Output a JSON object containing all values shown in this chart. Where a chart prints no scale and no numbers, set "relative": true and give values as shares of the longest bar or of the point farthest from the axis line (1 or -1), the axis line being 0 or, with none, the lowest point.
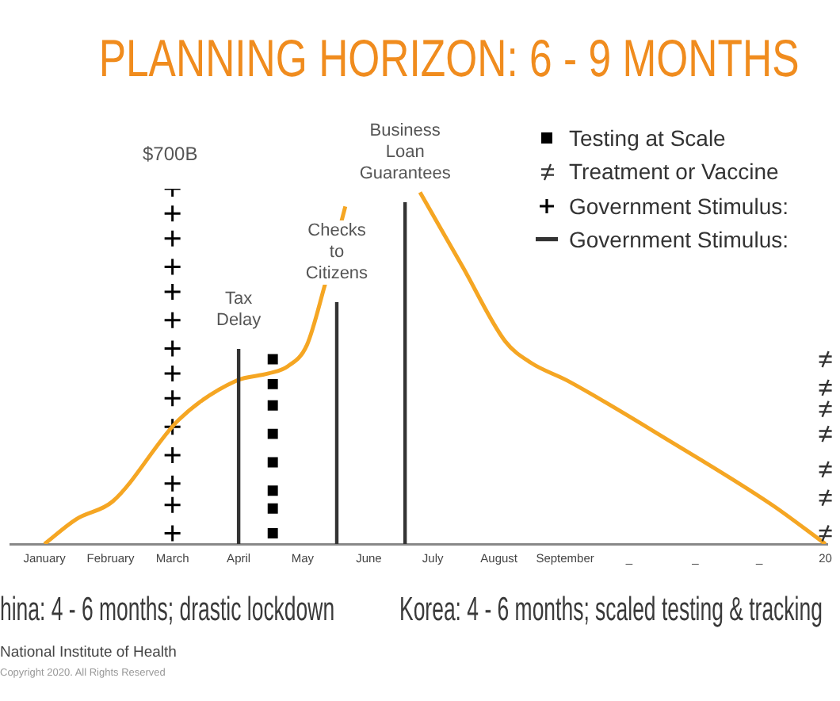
{
  "chart_data": {
    "type": "line",
    "title": "PLANNING HORIZON: 6 - 9 MONTHS",
    "relative": true,
    "legend": "top right",
    "xlim": [
      "2019-12-16",
      "2021-01-02"
    ],
    "xticks": [
      {
        "value": "2020-01-01",
        "label": "January"
      },
      {
        "value": "2020-02-01",
        "label": "February"
      },
      {
        "value": "2020-03-01",
        "label": "March"
      },
      {
        "value": "2020-04-01",
        "label": "April"
      },
      {
        "value": "2020-05-01",
        "label": "May"
      },
      {
        "value": "2020-06-01",
        "label": "June"
      },
      {
        "value": "2020-07-01",
        "label": "July"
      },
      {
        "value": "2020-08-01",
        "label": "August"
      },
      {
        "value": "2020-09-01",
        "label": "September"
      },
      {
        "value": "2020-10-01",
        "label": "_"
      },
      {
        "value": "2020-11-01",
        "label": "_"
      },
      {
        "value": "2020-12-01",
        "label": "_"
      },
      {
        "value": "2021-01-01",
        "label": "20"
      }
    ],
    "series": [
      {
        "color": "#f5a623",
        "x": [
          "2020-01-01",
          "2020-01-16",
          "2020-02-02",
          "2020-03-04",
          "2020-03-31",
          "2020-04-15",
          "2020-04-24",
          "2020-05-03",
          "2020-05-11",
          "2020-05-21",
          "2020-06-05",
          "2020-06-25",
          "2020-07-15",
          "2020-08-04",
          "2020-08-16",
          "2020-09-02",
          "2020-10-20",
          "2020-12-07",
          "2021-01-01"
        ],
        "values": [
          0,
          0.07,
          0.12,
          0.35,
          0.46,
          0.48,
          0.5,
          0.56,
          0.72,
          0.95,
          null,
          0.99,
          0.78,
          0.57,
          0.51,
          0.46,
          0.29,
          0.11,
          0
        ]
      },
      {
        "type": "scatter",
        "name": "Testing at Scale",
        "color": "#000000",
        "marker": "square",
        "x": [
          "2020-04-17",
          "2020-04-17",
          "2020-04-17",
          "2020-04-17",
          "2020-04-17",
          "2020-04-17",
          "2020-04-17",
          "2020-04-17"
        ],
        "values": [
          0.52,
          0.45,
          0.39,
          0.31,
          0.23,
          0.15,
          0.1,
          0.03
        ]
      },
      {
        "type": "scatter",
        "name": "Treatment or Vaccine",
        "color": "#333333",
        "x": [
          "2021-01-01",
          "2021-01-01",
          "2021-01-01",
          "2021-01-01",
          "2021-01-01",
          "2021-01-01",
          "2021-01-01"
        ],
        "values": [
          0.52,
          0.44,
          0.38,
          0.31,
          0.21,
          0.13,
          0.03
        ]
      },
      {
        "type": "scatter",
        "name": "Government Stimulus:",
        "color": "#000000",
        "marker": "cross",
        "x": [
          "2020-03-01",
          "2020-03-01",
          "2020-03-01",
          "2020-03-01",
          "2020-03-01",
          "2020-03-01",
          "2020-03-01",
          "2020-03-01",
          "2020-03-01",
          "2020-03-01",
          "2020-03-01",
          "2020-03-01",
          "2020-03-01",
          "2020-03-01"
        ],
        "values": [
          1,
          0.93,
          0.86,
          0.78,
          0.71,
          0.63,
          0.55,
          0.48,
          0.41,
          0.33,
          0.25,
          0.17,
          0.11,
          0.03
        ]
      }
    ],
    "ref_lines": [
      {
        "axis": "x",
        "value": "2020-04-01",
        "label": "Tax Delay",
        "color": "#333333"
      },
      {
        "axis": "x",
        "value": "2020-05-17",
        "label": "Checks to Citizens",
        "color": "#333333"
      },
      {
        "axis": "x",
        "value": "2020-06-18",
        "label": "Business Loan Guarantees",
        "color": "#333333"
      }
    ],
    "annotations": [
      "$700B",
      "Government Stimulus:",
      "hina: 4 - 6 months; drastic lockdown",
      "Korea: 4 - 6  months; scaled testing & tracking",
      "National Institute of Health",
      "Copyright 2020.  All Rights Reserved"
    ]
  }
}
